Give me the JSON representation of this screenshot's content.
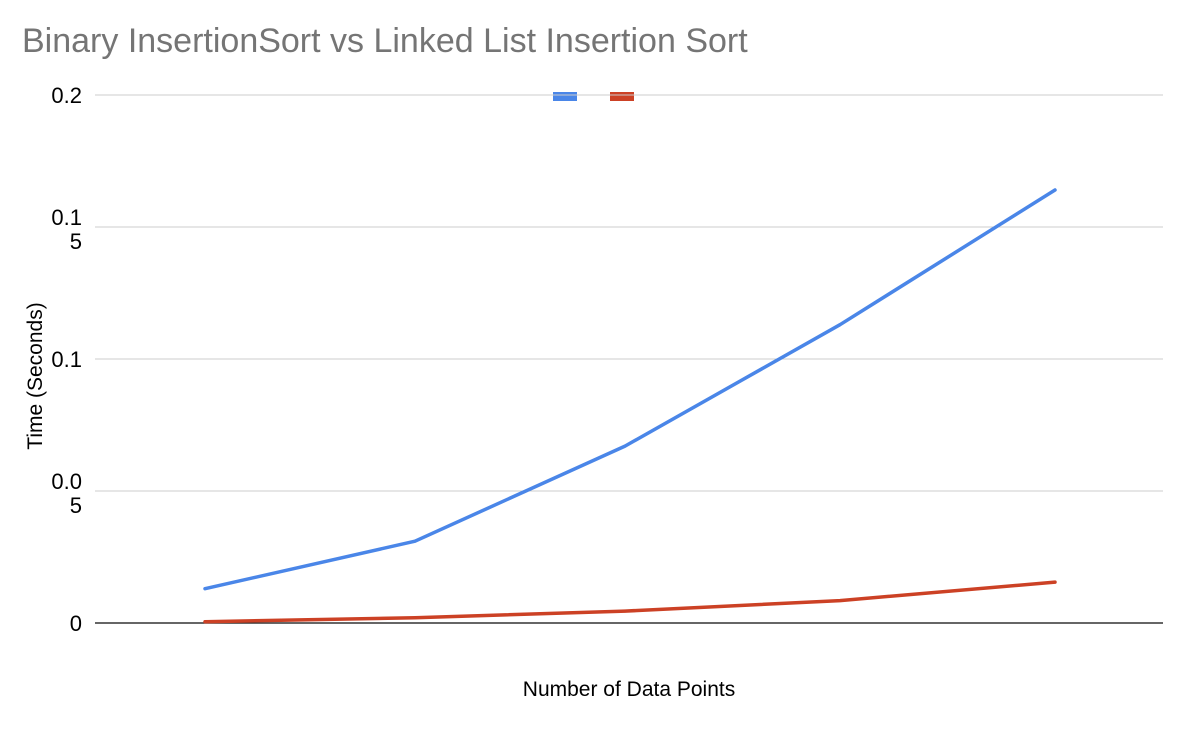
{
  "chart_data": {
    "type": "line",
    "title": "Binary InsertionSort vs Linked List Insertion Sort",
    "xlabel": "Number of Data Points",
    "ylabel": "Time (Seconds)",
    "ylim": [
      0,
      0.2
    ],
    "y_ticks": [
      {
        "value": 0,
        "lines": [
          "0"
        ]
      },
      {
        "value": 0.05,
        "lines": [
          "0.0",
          "5"
        ]
      },
      {
        "value": 0.1,
        "lines": [
          "0.1"
        ]
      },
      {
        "value": 0.15,
        "lines": [
          "0.1",
          "5"
        ]
      },
      {
        "value": 0.2,
        "lines": [
          "0.2"
        ]
      }
    ],
    "x": [
      1,
      2,
      3,
      4,
      5
    ],
    "grid": true,
    "legend_position": "top-center",
    "series": [
      {
        "color": "#4a86e8",
        "values": [
          0.013,
          0.031,
          0.067,
          0.113,
          0.164
        ]
      },
      {
        "color": "#cc4125",
        "values": [
          0.0005,
          0.002,
          0.0045,
          0.0085,
          0.0155
        ]
      }
    ]
  }
}
